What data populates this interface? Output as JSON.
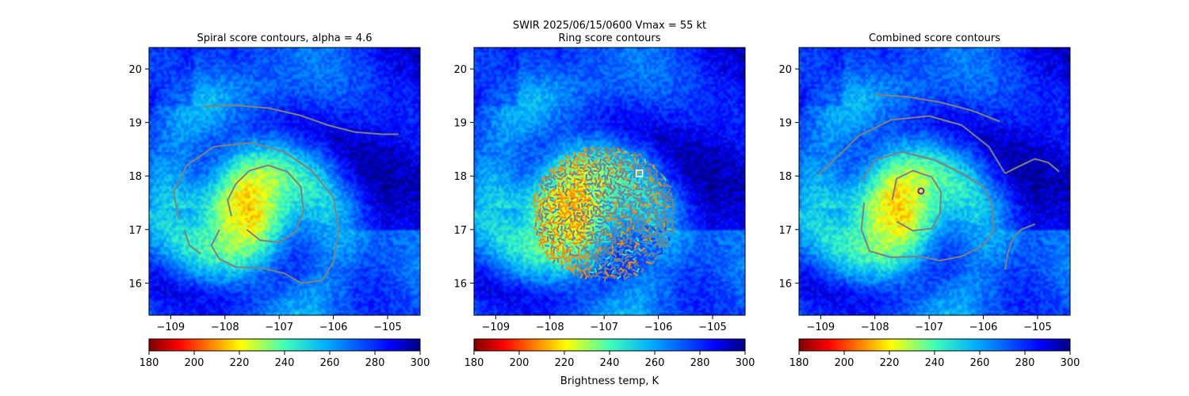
{
  "figure": {
    "suptitle_line1": "SWIR  2025/06/15/0600    Vmax = 55 kt",
    "colorbar_label": "Brightness temp, K"
  },
  "colors": {
    "spiral_contour": "#808080",
    "ring_contour": "#808080",
    "ring_center_marker": "#ffffff",
    "combined_center_marker": "#8b1a8b"
  },
  "chart_data": [
    {
      "type": "heatmap",
      "title": "Spiral score contours, alpha =  4.6",
      "x_ticks": [
        -109,
        -108,
        -107,
        -106,
        -105
      ],
      "y_ticks": [
        16,
        17,
        18,
        19,
        20
      ],
      "xlim": [
        -109.4,
        -104.4
      ],
      "ylim": [
        15.4,
        20.4
      ],
      "colormap": "jet_r",
      "colorbar_range": [
        180,
        300
      ],
      "colorbar_ticks": [
        180,
        200,
        220,
        240,
        260,
        280,
        300
      ],
      "storm_center": [
        -107.6,
        17.4
      ],
      "contours": [
        [
          [
            -108.4,
            19.3
          ],
          [
            -107.8,
            19.32
          ],
          [
            -107.2,
            19.27
          ],
          [
            -106.6,
            19.13
          ],
          [
            -106.1,
            18.95
          ],
          [
            -105.6,
            18.82
          ],
          [
            -105.1,
            18.78
          ],
          [
            -104.8,
            18.78
          ]
        ],
        [
          [
            -108.1,
            17.0
          ],
          [
            -108.25,
            16.7
          ],
          [
            -108.1,
            16.45
          ],
          [
            -107.8,
            16.3
          ],
          [
            -107.3,
            16.28
          ],
          [
            -106.9,
            16.18
          ],
          [
            -106.6,
            16.0
          ],
          [
            -106.2,
            16.05
          ],
          [
            -106.0,
            16.4
          ],
          [
            -105.9,
            17.0
          ],
          [
            -106.0,
            17.6
          ],
          [
            -106.4,
            18.1
          ],
          [
            -106.9,
            18.45
          ],
          [
            -107.5,
            18.62
          ],
          [
            -108.2,
            18.55
          ],
          [
            -108.7,
            18.2
          ],
          [
            -108.95,
            17.7
          ],
          [
            -108.85,
            17.2
          ]
        ],
        [
          [
            -108.75,
            16.98
          ],
          [
            -108.65,
            16.7
          ],
          [
            -108.45,
            16.55
          ]
        ],
        [
          [
            -107.6,
            17.0
          ],
          [
            -107.35,
            16.8
          ],
          [
            -107.0,
            16.76
          ],
          [
            -106.7,
            16.95
          ],
          [
            -106.55,
            17.35
          ],
          [
            -106.6,
            17.8
          ],
          [
            -106.85,
            18.08
          ],
          [
            -107.2,
            18.2
          ],
          [
            -107.55,
            18.1
          ],
          [
            -107.8,
            17.85
          ],
          [
            -107.95,
            17.55
          ],
          [
            -107.88,
            17.25
          ]
        ]
      ]
    },
    {
      "type": "heatmap",
      "title": "Ring score contours",
      "x_ticks": [
        -109,
        -108,
        -107,
        -106,
        -105
      ],
      "y_ticks": [
        16,
        17,
        18,
        19,
        20
      ],
      "xlim": [
        -109.4,
        -104.4
      ],
      "ylim": [
        15.4,
        20.4
      ],
      "colormap": "jet_r",
      "colorbar_range": [
        180,
        300
      ],
      "colorbar_ticks": [
        180,
        200,
        220,
        240,
        260,
        280,
        300
      ],
      "storm_center": [
        -107.6,
        17.4
      ],
      "ring_region_center": [
        -107.0,
        17.3
      ],
      "ring_center_marker": [
        -106.35,
        18.05
      ]
    },
    {
      "type": "heatmap",
      "title": "Combined score contours",
      "x_ticks": [
        -109,
        -108,
        -107,
        -106,
        -105
      ],
      "y_ticks": [
        16,
        17,
        18,
        19,
        20
      ],
      "xlim": [
        -109.4,
        -104.4
      ],
      "ylim": [
        15.4,
        20.4
      ],
      "colormap": "jet_r",
      "colorbar_range": [
        180,
        300
      ],
      "colorbar_ticks": [
        180,
        200,
        220,
        240,
        260,
        280,
        300
      ],
      "storm_center": [
        -107.6,
        17.4
      ],
      "combined_center_marker": [
        -107.15,
        17.72
      ],
      "contours": [
        [
          [
            -108.0,
            19.52
          ],
          [
            -107.4,
            19.48
          ],
          [
            -106.8,
            19.38
          ],
          [
            -106.2,
            19.22
          ],
          [
            -105.7,
            19.02
          ]
        ],
        [
          [
            -109.05,
            18.02
          ],
          [
            -108.7,
            18.35
          ],
          [
            -108.3,
            18.75
          ],
          [
            -107.7,
            19.05
          ],
          [
            -107.0,
            19.12
          ],
          [
            -106.4,
            18.95
          ],
          [
            -105.9,
            18.55
          ],
          [
            -105.6,
            18.05
          ]
        ],
        [
          [
            -105.6,
            18.05
          ],
          [
            -105.3,
            18.2
          ],
          [
            -105.05,
            18.32
          ],
          [
            -104.8,
            18.25
          ],
          [
            -104.6,
            18.08
          ]
        ],
        [
          [
            -108.2,
            17.5
          ],
          [
            -108.25,
            17.0
          ],
          [
            -108.1,
            16.6
          ],
          [
            -107.7,
            16.48
          ],
          [
            -107.2,
            16.5
          ],
          [
            -106.8,
            16.42
          ],
          [
            -106.4,
            16.5
          ],
          [
            -106.0,
            16.7
          ],
          [
            -105.8,
            17.0
          ],
          [
            -105.85,
            17.5
          ],
          [
            -106.0,
            17.8
          ],
          [
            -106.4,
            18.05
          ],
          [
            -106.9,
            18.3
          ],
          [
            -107.5,
            18.45
          ],
          [
            -108.0,
            18.3
          ],
          [
            -108.25,
            17.9
          ]
        ],
        [
          [
            -107.6,
            17.15
          ],
          [
            -107.3,
            16.98
          ],
          [
            -106.95,
            17.02
          ],
          [
            -106.8,
            17.3
          ],
          [
            -106.78,
            17.7
          ],
          [
            -106.95,
            17.98
          ],
          [
            -107.3,
            18.1
          ],
          [
            -107.6,
            17.95
          ],
          [
            -107.68,
            17.55
          ]
        ],
        [
          [
            -105.6,
            16.25
          ],
          [
            -105.55,
            16.55
          ],
          [
            -105.45,
            16.85
          ],
          [
            -105.3,
            17.0
          ],
          [
            -105.05,
            17.1
          ]
        ]
      ]
    }
  ]
}
